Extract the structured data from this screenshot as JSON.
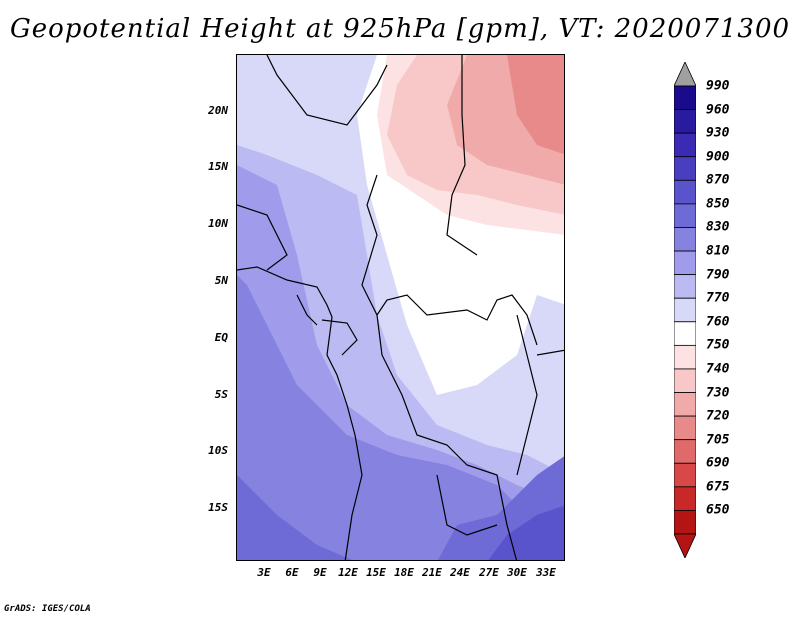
{
  "title": "Geopotential Height at 925hPa [gpm], VT: 2020071300",
  "credit": "GrADS: IGES/COLA",
  "map": {
    "lat_labels": [
      "20N",
      "15N",
      "10N",
      "5N",
      "EQ",
      "5S",
      "10S",
      "15S"
    ],
    "lon_labels": [
      "3E",
      "6E",
      "9E",
      "12E",
      "15E",
      "18E",
      "21E",
      "24E",
      "27E",
      "30E",
      "33E"
    ]
  },
  "colorbar": {
    "levels": [
      "990",
      "960",
      "930",
      "900",
      "870",
      "850",
      "830",
      "810",
      "790",
      "770",
      "760",
      "750",
      "740",
      "730",
      "720",
      "705",
      "690",
      "675",
      "650"
    ],
    "colors": [
      "#1a0a8c",
      "#2a1aa0",
      "#3a2ab4",
      "#4a3ec0",
      "#5a54cc",
      "#6e6ad6",
      "#8682e0",
      "#a09ceb",
      "#bcbaf2",
      "#d8d8f8",
      "#ffffff",
      "#fce2e2",
      "#f8c8c8",
      "#f0aaaa",
      "#e88a8a",
      "#e06a6a",
      "#d84848",
      "#c82828",
      "#b41414"
    ],
    "top_arrow_color": "#a0a0a0",
    "bottom_arrow_color": "#b41414"
  }
}
